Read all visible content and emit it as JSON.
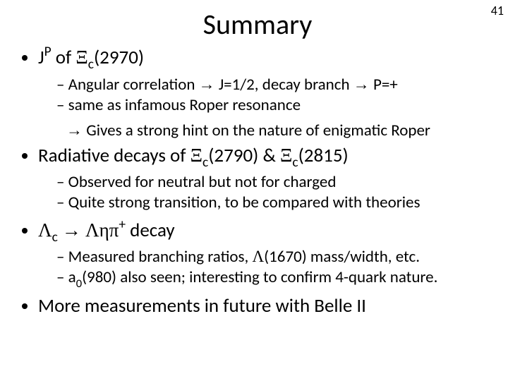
{
  "page_number": "41",
  "title": "Summary",
  "bullets": [
    {
      "heading_pre": "J",
      "heading_sup": "P",
      "heading_mid": " of ",
      "sym": "Ξ",
      "sub": "c",
      "heading_post": "(2970)",
      "subs": [
        {
          "line1_a": "Angular correlation ",
          "line1_b": " J=1/2, decay branch ",
          "line1_c": " P=+"
        },
        {
          "line2": "same as infamous Roper resonance"
        }
      ],
      "cont_a": " Gives a strong hint on the nature of enigmatic Roper"
    },
    {
      "heading_pre": "Radiative decays of ",
      "sym1": "Ξ",
      "sub1": "c",
      "mid1": "(2790) & ",
      "sym2": "Ξ",
      "sub2": "c",
      "post": "(2815)",
      "subs": [
        {
          "l": "Observed for neutral but not for charged"
        },
        {
          "l": "Quite strong transition, to be compared with theories"
        }
      ]
    },
    {
      "sym1": "Λ",
      "sub1": "c",
      "arrow_sp": " ",
      "sym2": "Λ",
      "sym3": "η",
      "sym4": "π",
      "sup": "+",
      "post": " decay",
      "subs": [
        {
          "a": "Measured branching ratios, ",
          "sym": "Λ",
          "b": "(1670) mass/width, etc."
        },
        {
          "a": "a",
          "sub": "0",
          "b": "(980) also seen; interesting to confirm 4-quark nature."
        }
      ]
    },
    {
      "heading": "More measurements in future with Belle II"
    }
  ]
}
